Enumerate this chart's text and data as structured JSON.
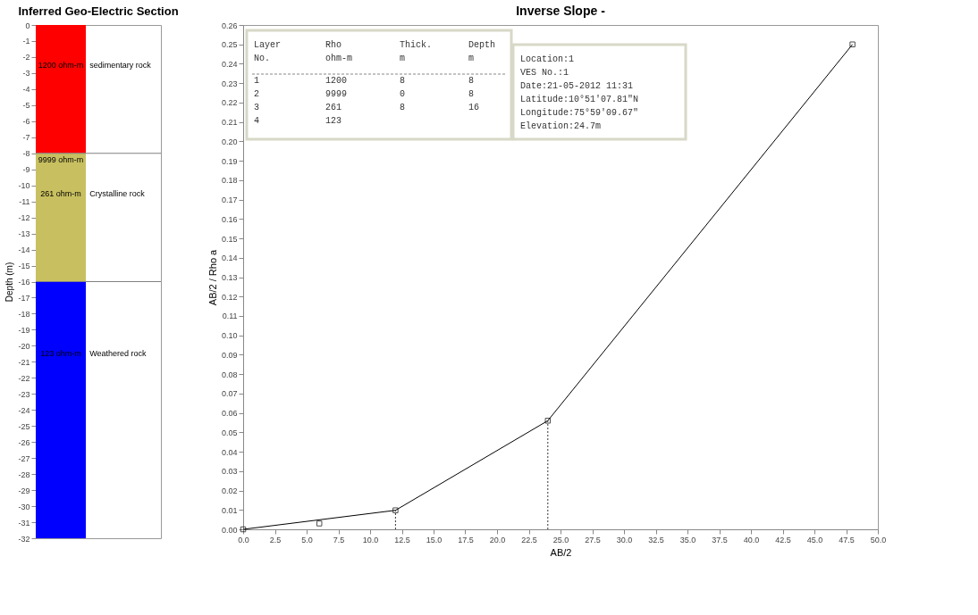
{
  "chart_data": [
    {
      "type": "bar",
      "title": "Inferred Geo-Electric Section",
      "ylabel": "Depth (m)",
      "stacked": true,
      "categories": [
        null
      ],
      "series": [
        {
          "color": "#ff0000",
          "values": [
            -8
          ]
        },
        {
          "color": "#c8c060",
          "values": [
            0
          ]
        },
        {
          "color": "#c8c060",
          "values": [
            -8
          ]
        },
        {
          "color": "#0000ff",
          "values": [
            -16
          ]
        }
      ],
      "ylim": [
        -32,
        0
      ],
      "yticks": [
        0,
        -1,
        -2,
        -3,
        -4,
        -5,
        -6,
        -7,
        -8,
        -9,
        -10,
        -11,
        -12,
        -13,
        -14,
        -15,
        -16,
        -17,
        -18,
        -19,
        -20,
        -21,
        -22,
        -23,
        -24,
        -25,
        -26,
        -27,
        -28,
        -29,
        -30,
        -31,
        -32
      ],
      "ref_lines": [
        {
          "axis": "y",
          "value": -8,
          "color": "#808080"
        },
        {
          "axis": "y",
          "value": -16,
          "color": "#808080"
        }
      ],
      "annotations": [
        "1200 ohm-m",
        "9999 ohm-m",
        "261 ohm-m",
        "123 ohm-m",
        "sedimentary rock",
        "Crystalline rock",
        "Weathered rock"
      ],
      "grid": false
    },
    {
      "type": "line",
      "title": "Inverse Slope -",
      "xlabel": "AB/2",
      "ylabel": "AB/2  /  Rho a",
      "series": [
        {
          "type": "line",
          "color": "#000000",
          "marker": "square",
          "x": [
            0,
            12,
            24,
            48
          ],
          "values": [
            0,
            0.0098,
            0.056,
            0.25
          ]
        },
        {
          "type": "scatter",
          "color": "#000000",
          "marker": "square",
          "x": [
            6
          ],
          "values": [
            0.003
          ]
        },
        {
          "type": "line",
          "color": "#000000",
          "line_style": "dotted",
          "marker": "none",
          "x": [
            12,
            12
          ],
          "values": [
            0,
            0.0098
          ]
        },
        {
          "type": "line",
          "color": "#000000",
          "line_style": "dotted",
          "marker": "none",
          "x": [
            24,
            24
          ],
          "values": [
            0,
            0.056
          ]
        }
      ],
      "xlim": [
        0,
        50
      ],
      "xticks": [
        {
          "value": 0,
          "label": "0.0"
        },
        2.5,
        {
          "value": 5,
          "label": "5.0"
        },
        7.5,
        {
          "value": 10,
          "label": "10.0"
        },
        12.5,
        {
          "value": 15,
          "label": "15.0"
        },
        17.5,
        {
          "value": 20,
          "label": "20.0"
        },
        22.5,
        {
          "value": 25,
          "label": "25.0"
        },
        27.5,
        {
          "value": 30,
          "label": "30.0"
        },
        32.5,
        {
          "value": 35,
          "label": "35.0"
        },
        37.5,
        {
          "value": 40,
          "label": "40.0"
        },
        42.5,
        {
          "value": 45,
          "label": "45.0"
        },
        47.5,
        {
          "value": 50,
          "label": "50.0"
        }
      ],
      "ylim": [
        0,
        0.26
      ],
      "yticks": [
        {
          "value": 0,
          "label": "0.00"
        },
        0.01,
        0.02,
        0.03,
        0.04,
        0.05,
        0.06,
        0.07,
        0.08,
        0.09,
        {
          "value": 0.1,
          "label": "0.10"
        },
        0.11,
        0.12,
        0.13,
        0.14,
        0.15,
        0.16,
        0.17,
        0.18,
        0.19,
        {
          "value": 0.2,
          "label": "0.20"
        },
        0.21,
        0.22,
        0.23,
        0.24,
        0.25,
        0.26
      ],
      "annotations": [
        "Layer",
        "Rho",
        "Thick.",
        "Depth",
        "No.",
        "ohm-m",
        "m",
        "m",
        "1",
        "1200",
        "8",
        "8",
        "2",
        "9999",
        "0",
        "8",
        "3",
        "261",
        "8",
        "16",
        "4",
        "123",
        "Location:1",
        "VES No.:1",
        "Date:21-05-2012 11:31",
        "Latitude:10°51'07.81\"N",
        "Longitude:75°59'09.67\"",
        "Elevation:24.7m"
      ],
      "grid": false
    }
  ]
}
